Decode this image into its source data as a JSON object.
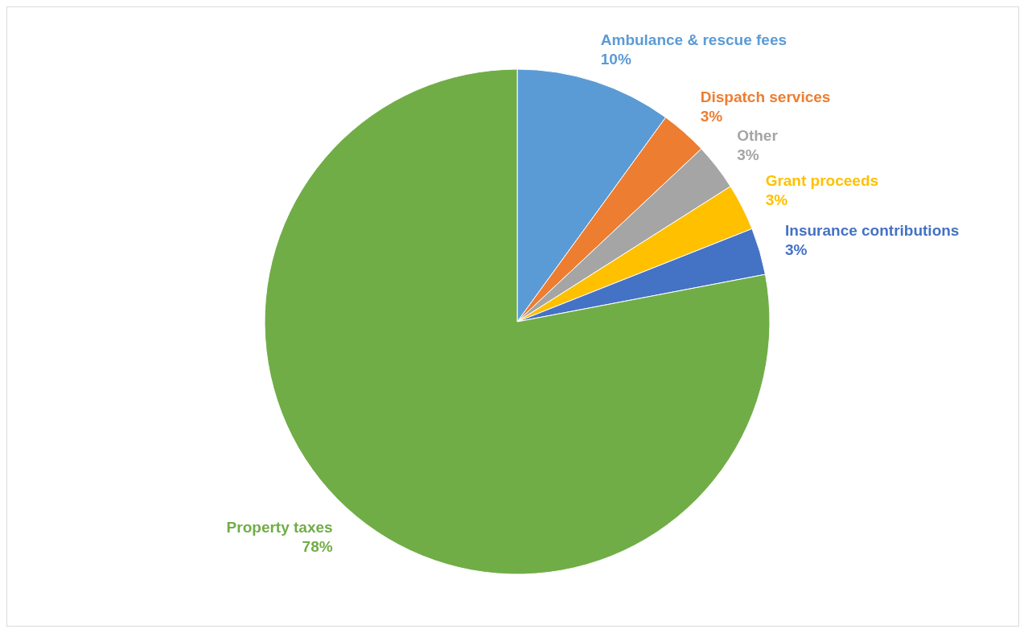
{
  "chart_data": {
    "type": "pie",
    "categories": [
      "Ambulance & rescue fees",
      "Dispatch services",
      "Other",
      "Grant proceeds",
      "Insurance contributions",
      "Property taxes"
    ],
    "values": [
      10,
      3,
      3,
      3,
      3,
      78
    ],
    "colors": [
      "#5b9bd5",
      "#ed7d31",
      "#a5a5a5",
      "#ffc000",
      "#4472c4",
      "#70ad47"
    ],
    "value_labels": [
      "10%",
      "3%",
      "3%",
      "3%",
      "3%",
      "78%"
    ],
    "legend": false
  }
}
